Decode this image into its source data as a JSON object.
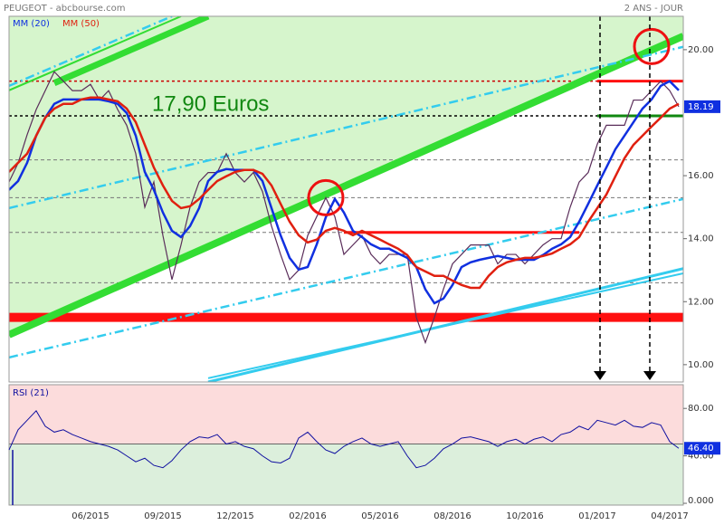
{
  "chart_data": {
    "type": "line",
    "title": "PEUGEOT - abcbourse.com",
    "subtitle": "2 ANS - JOUR",
    "annotation": "17,90 Euros",
    "categories": [
      null,
      null,
      null,
      null,
      null,
      null,
      null,
      null,
      null,
      "06/2015",
      null,
      null,
      null,
      null,
      null,
      null,
      null,
      "09/2015",
      null,
      null,
      null,
      null,
      null,
      null,
      null,
      "12/2015",
      null,
      null,
      null,
      null,
      null,
      null,
      null,
      "02/2016",
      null,
      null,
      null,
      null,
      null,
      null,
      null,
      "05/2016",
      null,
      null,
      null,
      null,
      null,
      null,
      null,
      "08/2016",
      null,
      null,
      null,
      null,
      null,
      null,
      null,
      "10/2016",
      null,
      null,
      null,
      null,
      null,
      null,
      null,
      "01/2017",
      null,
      null,
      null,
      null,
      null,
      null,
      null,
      "04/2017",
      null
    ],
    "ylim": [
      9.45,
      21.06
    ],
    "yticks": [
      {
        "value": 10,
        "label": "10.00"
      },
      {
        "value": 12,
        "label": "12.00"
      },
      {
        "value": 14,
        "label": "14.00"
      },
      {
        "value": 16,
        "label": "16.00"
      },
      {
        "value": 20,
        "label": "20.00"
      }
    ],
    "series": [
      {
        "color": "#5a2d5a",
        "values": [
          15.8,
          16.4,
          17.3,
          18.1,
          18.7,
          19.3,
          19.0,
          18.7,
          18.7,
          18.9,
          18.4,
          18.7,
          18.1,
          17.6,
          16.7,
          15.0,
          15.8,
          14.1,
          12.7,
          13.8,
          15.0,
          15.8,
          16.1,
          16.1,
          16.7,
          16.1,
          15.8,
          16.1,
          15.5,
          14.4,
          13.5,
          12.7,
          13.0,
          14.1,
          14.7,
          15.3,
          14.7,
          13.5,
          13.8,
          14.1,
          13.5,
          13.2,
          13.5,
          13.5,
          13.5,
          11.5,
          10.7,
          11.5,
          12.4,
          13.2,
          13.5,
          13.8,
          13.8,
          13.8,
          13.2,
          13.5,
          13.5,
          13.2,
          13.5,
          13.8,
          14.0,
          14.0,
          15.0,
          15.8,
          16.1,
          17.0,
          17.6,
          17.6,
          17.6,
          18.4,
          18.4,
          18.7,
          19.0,
          18.7,
          18.19
        ]
      },
      {
        "name": "MM (20)",
        "color": "#1030e0",
        "values": [
          15.55,
          15.83,
          16.41,
          17.27,
          17.84,
          18.28,
          18.42,
          18.42,
          18.42,
          18.42,
          18.42,
          18.36,
          18.28,
          17.99,
          17.27,
          16.12,
          15.55,
          14.83,
          14.25,
          14.05,
          14.4,
          14.97,
          15.83,
          16.12,
          16.21,
          16.18,
          16.18,
          16.18,
          15.83,
          14.97,
          14.11,
          13.39,
          13.02,
          13.1,
          13.82,
          14.68,
          15.26,
          14.83,
          14.25,
          14.05,
          13.82,
          13.68,
          13.68,
          13.53,
          13.39,
          13.1,
          12.39,
          11.95,
          12.1,
          12.53,
          13.1,
          13.25,
          13.33,
          13.39,
          13.45,
          13.39,
          13.33,
          13.33,
          13.33,
          13.48,
          13.68,
          13.82,
          14.05,
          14.54,
          15.11,
          15.69,
          16.26,
          16.84,
          17.27,
          17.7,
          18.13,
          18.42,
          18.85,
          19.0,
          18.71
        ]
      },
      {
        "name": "MM (50)",
        "color": "#e02010",
        "values": [
          16.12,
          16.41,
          16.7,
          17.27,
          17.84,
          18.13,
          18.28,
          18.28,
          18.42,
          18.48,
          18.48,
          18.42,
          18.36,
          18.13,
          17.7,
          16.98,
          16.26,
          15.69,
          15.2,
          14.97,
          15.03,
          15.26,
          15.55,
          15.83,
          15.98,
          16.12,
          16.18,
          16.18,
          16.06,
          15.69,
          15.11,
          14.54,
          14.11,
          13.88,
          13.97,
          14.25,
          14.34,
          14.25,
          14.11,
          14.25,
          14.11,
          13.97,
          13.82,
          13.68,
          13.48,
          13.1,
          12.96,
          12.82,
          12.82,
          12.67,
          12.53,
          12.44,
          12.44,
          12.82,
          13.1,
          13.25,
          13.33,
          13.39,
          13.39,
          13.45,
          13.53,
          13.68,
          13.82,
          14.05,
          14.54,
          14.97,
          15.4,
          15.98,
          16.55,
          16.98,
          17.27,
          17.56,
          17.84,
          18.13,
          18.28
        ]
      }
    ],
    "levels": [
      {
        "value": 11.5,
        "color": "#ff1010",
        "width": 10
      },
      {
        "value": 19.0,
        "color": "#cc0000",
        "width": 1.5,
        "dash": "3,3"
      },
      {
        "value": 17.9,
        "color": "#000000",
        "width": 1.5,
        "dash": "3,3"
      },
      {
        "value": 16.5,
        "color": "#777777",
        "width": 1,
        "dash": "4,3"
      },
      {
        "value": 15.3,
        "color": "#777777",
        "width": 1,
        "dash": "4,3"
      },
      {
        "value": 14.2,
        "color": "#777777",
        "width": 1,
        "dash": "4,3"
      },
      {
        "value": 12.6,
        "color": "#777777",
        "width": 1,
        "dash": "4,3"
      },
      {
        "value": 14.2,
        "color": "#ff1010",
        "width": 3,
        "from": 37,
        "to": 63
      },
      {
        "value": 19.0,
        "color": "#ff1010",
        "width": 3,
        "from": 65,
        "to": 74.5
      },
      {
        "value": 17.9,
        "color": "#118811",
        "width": 3,
        "from": 65,
        "to": 74.5
      }
    ],
    "trendlines": [
      {
        "x": [
          0,
          74.5
        ],
        "y": [
          10.95,
          20.43
        ],
        "color": "#33dd33",
        "width": 8
      },
      {
        "x": [
          5,
          22
        ],
        "y": [
          18.94,
          21.06
        ],
        "color": "#33dd33",
        "width": 7
      },
      {
        "x": [
          0,
          19
        ],
        "y": [
          18.71,
          21.06
        ],
        "color": "#33dd33",
        "width": 2
      },
      {
        "x": [
          0,
          74.5
        ],
        "y": [
          14.97,
          20.09
        ],
        "color": "#33ccee",
        "width": 2.5,
        "dash": "10,4,2,4"
      },
      {
        "x": [
          0,
          74.5
        ],
        "y": [
          10.23,
          15.26
        ],
        "color": "#33ccee",
        "width": 2.5,
        "dash": "10,4,2,4"
      },
      {
        "x": [
          0,
          18
        ],
        "y": [
          18.85,
          21.06
        ],
        "color": "#33ccee",
        "width": 2.5,
        "dash": "10,4,2,4"
      },
      {
        "x": [
          22,
          74.5
        ],
        "y": [
          9.45,
          13.05
        ],
        "color": "#33ccee",
        "width": 3
      },
      {
        "x": [
          22,
          74.5
        ],
        "y": [
          9.57,
          12.9
        ],
        "color": "#33ccee",
        "width": 2
      }
    ],
    "circles": [
      {
        "x": 35,
        "y": 15.3
      },
      {
        "x": 71,
        "y": 20.1
      }
    ],
    "arrows": [
      65.3,
      70.8
    ],
    "rsi": {
      "title": "RSI (21)",
      "color": "#1010a0",
      "ylim": [
        -1.5,
        100
      ],
      "yticks": [
        {
          "value": 0,
          "label": "0.000"
        },
        {
          "value": 40,
          "label": "40.00"
        },
        {
          "value": 80,
          "label": "80.00"
        }
      ],
      "midline": 50,
      "values": [
        45,
        62,
        70,
        78,
        65,
        60,
        62,
        58,
        55,
        52,
        50,
        48,
        45,
        40,
        35,
        38,
        32,
        30,
        36,
        45,
        52,
        56,
        55,
        58,
        50,
        52,
        48,
        46,
        40,
        35,
        34,
        38,
        55,
        60,
        52,
        45,
        42,
        48,
        52,
        55,
        50,
        48,
        50,
        52,
        40,
        30,
        32,
        38,
        46,
        50,
        55,
        56,
        54,
        52,
        48,
        52,
        54,
        50,
        54,
        56,
        52,
        58,
        60,
        65,
        62,
        70,
        68,
        66,
        70,
        65,
        64,
        68,
        66,
        52,
        46.4
      ],
      "value_labels": [
        null,
        null,
        null,
        null,
        null,
        null,
        null,
        null,
        null,
        null,
        null,
        null,
        null,
        null,
        null,
        null,
        null,
        null,
        null,
        null,
        null,
        null,
        null,
        null,
        null,
        null,
        null,
        null,
        null,
        null,
        null,
        null,
        null,
        null,
        null,
        null,
        null,
        null,
        null,
        null,
        null,
        null,
        null,
        null,
        null,
        null,
        null,
        null,
        null,
        null,
        null,
        null,
        null,
        null,
        null,
        null,
        null,
        null,
        null,
        null,
        null,
        null,
        null,
        null,
        null,
        null,
        null,
        null,
        null,
        null,
        null,
        null,
        null,
        null,
        "46.40"
      ]
    }
  }
}
